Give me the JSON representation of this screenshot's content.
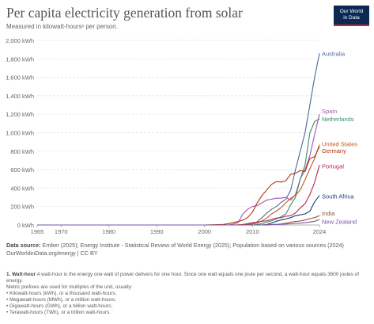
{
  "title": "Per capita electricity generation from solar",
  "subtitle": "Measured in kilowatt-hours¹ per person.",
  "logo": {
    "line1": "Our World",
    "line2": "in Data"
  },
  "source": {
    "label": "Data source:",
    "text": "Ember (2025); Energy Institute - Statistical Review of World Energy (2025); Population based on various sources (2024)",
    "url": "OurWorldinData.org/energy | CC BY"
  },
  "notes": {
    "number": "1.",
    "term": "Watt-hour",
    "definition": "A watt-hour is the energy one watt of power delivers for one hour. Since one watt equals one joule per second, a watt-hour equals 3600 joules of energy.",
    "intro": "Metric prefixes are used for multiples of the unit, usually:",
    "items": [
      "• Kilowatt-hours (kWh), or a thousand watt-hours;",
      "• Megawatt-hours (MWh), or a million watt-hours;",
      "• Gigawatt-hours (GWh), or a billion watt-hours;",
      "• Terawatt-hours (TWh), or a trillion watt-hours."
    ]
  },
  "chart_data": {
    "type": "line",
    "title": "Per capita electricity generation from solar",
    "subtitle": "Measured in kilowatt-hours¹ per person.",
    "ylim": [
      0,
      2000
    ],
    "xlim": [
      1965,
      2024
    ],
    "y_ticks": [
      0,
      200,
      400,
      600,
      800,
      1000,
      1200,
      1400,
      1600,
      1800,
      2000
    ],
    "y_tick_labels": [
      "0 kWh",
      "200 kWh",
      "400 kWh",
      "600 kWh",
      "800 kWh",
      "1,000 kWh",
      "1,200 kWh",
      "1,400 kWh",
      "1,600 kWh",
      "1,800 kWh",
      "2,000 kWh"
    ],
    "x_ticks": [
      1965,
      1970,
      1980,
      1990,
      2000,
      2010,
      2024
    ],
    "x_tick_labels": [
      "1965",
      "1970",
      "1980",
      "1990",
      "2000",
      "2010",
      "2024"
    ],
    "grid": "horizontal dashed",
    "legend": "right (labels at line ends)",
    "series": [
      {
        "name": "Australia",
        "color": "#4c6a9c",
        "label_y": 1860,
        "points": [
          [
            1965,
            0
          ],
          [
            2008,
            0
          ],
          [
            2009,
            3
          ],
          [
            2010,
            10
          ],
          [
            2011,
            35
          ],
          [
            2012,
            80
          ],
          [
            2013,
            130
          ],
          [
            2014,
            170
          ],
          [
            2015,
            200
          ],
          [
            2016,
            245
          ],
          [
            2017,
            280
          ],
          [
            2018,
            380
          ],
          [
            2019,
            600
          ],
          [
            2020,
            800
          ],
          [
            2021,
            1000
          ],
          [
            2022,
            1300
          ],
          [
            2023,
            1600
          ],
          [
            2024,
            1860
          ]
        ]
      },
      {
        "name": "Spain",
        "color": "#a652ba",
        "label_y": 1235,
        "points": [
          [
            1965,
            0
          ],
          [
            2005,
            0
          ],
          [
            2006,
            10
          ],
          [
            2007,
            25
          ],
          [
            2008,
            120
          ],
          [
            2009,
            170
          ],
          [
            2010,
            200
          ],
          [
            2011,
            210
          ],
          [
            2012,
            240
          ],
          [
            2013,
            270
          ],
          [
            2014,
            280
          ],
          [
            2015,
            290
          ],
          [
            2016,
            290
          ],
          [
            2017,
            300
          ],
          [
            2018,
            270
          ],
          [
            2019,
            330
          ],
          [
            2020,
            500
          ],
          [
            2021,
            600
          ],
          [
            2022,
            750
          ],
          [
            2023,
            980
          ],
          [
            2024,
            1200
          ]
        ]
      },
      {
        "name": "Netherlands",
        "color": "#3c8c6c",
        "label_y": 1150,
        "points": [
          [
            1965,
            0
          ],
          [
            2010,
            0
          ],
          [
            2011,
            5
          ],
          [
            2012,
            15
          ],
          [
            2013,
            30
          ],
          [
            2014,
            45
          ],
          [
            2015,
            65
          ],
          [
            2016,
            90
          ],
          [
            2017,
            120
          ],
          [
            2018,
            220
          ],
          [
            2019,
            300
          ],
          [
            2020,
            500
          ],
          [
            2021,
            650
          ],
          [
            2022,
            1000
          ],
          [
            2023,
            1120
          ],
          [
            2024,
            1150
          ]
        ]
      },
      {
        "name": "United States",
        "color": "#c05917",
        "label_y": 880,
        "points": [
          [
            1965,
            0
          ],
          [
            2006,
            0
          ],
          [
            2008,
            5
          ],
          [
            2010,
            12
          ],
          [
            2011,
            20
          ],
          [
            2012,
            45
          ],
          [
            2013,
            75
          ],
          [
            2014,
            120
          ],
          [
            2015,
            150
          ],
          [
            2016,
            190
          ],
          [
            2017,
            240
          ],
          [
            2018,
            290
          ],
          [
            2019,
            320
          ],
          [
            2020,
            380
          ],
          [
            2021,
            490
          ],
          [
            2022,
            610
          ],
          [
            2023,
            720
          ],
          [
            2024,
            870
          ]
        ]
      },
      {
        "name": "Germany",
        "color": "#b13507",
        "label_y": 805,
        "points": [
          [
            1965,
            0
          ],
          [
            2000,
            0
          ],
          [
            2002,
            3
          ],
          [
            2004,
            6
          ],
          [
            2005,
            15
          ],
          [
            2006,
            27
          ],
          [
            2007,
            37
          ],
          [
            2008,
            53
          ],
          [
            2009,
            80
          ],
          [
            2010,
            140
          ],
          [
            2011,
            240
          ],
          [
            2012,
            320
          ],
          [
            2013,
            380
          ],
          [
            2014,
            440
          ],
          [
            2015,
            470
          ],
          [
            2016,
            465
          ],
          [
            2017,
            480
          ],
          [
            2018,
            550
          ],
          [
            2019,
            560
          ],
          [
            2020,
            590
          ],
          [
            2021,
            580
          ],
          [
            2022,
            720
          ],
          [
            2023,
            740
          ],
          [
            2024,
            850
          ]
        ]
      },
      {
        "name": "Portugal",
        "color": "#b6294c",
        "label_y": 640,
        "points": [
          [
            1965,
            0
          ],
          [
            2007,
            0
          ],
          [
            2008,
            5
          ],
          [
            2009,
            15
          ],
          [
            2010,
            25
          ],
          [
            2011,
            30
          ],
          [
            2012,
            40
          ],
          [
            2013,
            45
          ],
          [
            2014,
            60
          ],
          [
            2015,
            75
          ],
          [
            2016,
            80
          ],
          [
            2017,
            95
          ],
          [
            2018,
            100
          ],
          [
            2019,
            130
          ],
          [
            2020,
            185
          ],
          [
            2021,
            230
          ],
          [
            2022,
            330
          ],
          [
            2023,
            460
          ],
          [
            2024,
            650
          ]
        ]
      },
      {
        "name": "South Africa",
        "color": "#1a3a7a",
        "label_y": 315,
        "points": [
          [
            1965,
            0
          ],
          [
            2012,
            0
          ],
          [
            2013,
            5
          ],
          [
            2014,
            20
          ],
          [
            2015,
            40
          ],
          [
            2016,
            55
          ],
          [
            2017,
            65
          ],
          [
            2018,
            80
          ],
          [
            2019,
            100
          ],
          [
            2020,
            110
          ],
          [
            2021,
            120
          ],
          [
            2022,
            150
          ],
          [
            2023,
            250
          ],
          [
            2024,
            320
          ]
        ]
      },
      {
        "name": "India",
        "color": "#9a5129",
        "label_y": 130,
        "points": [
          [
            1965,
            0
          ],
          [
            2011,
            0
          ],
          [
            2012,
            1
          ],
          [
            2013,
            3
          ],
          [
            2014,
            4
          ],
          [
            2015,
            6
          ],
          [
            2016,
            11
          ],
          [
            2017,
            19
          ],
          [
            2018,
            29
          ],
          [
            2019,
            38
          ],
          [
            2020,
            43
          ],
          [
            2021,
            54
          ],
          [
            2022,
            69
          ],
          [
            2023,
            80
          ],
          [
            2024,
            100
          ]
        ]
      },
      {
        "name": "New Zealand",
        "color": "#7a56a6",
        "label_y": 40,
        "points": [
          [
            1965,
            0
          ],
          [
            2012,
            0
          ],
          [
            2013,
            2
          ],
          [
            2014,
            4
          ],
          [
            2015,
            6
          ],
          [
            2016,
            8
          ],
          [
            2017,
            10
          ],
          [
            2018,
            13
          ],
          [
            2019,
            17
          ],
          [
            2020,
            20
          ],
          [
            2021,
            25
          ],
          [
            2022,
            32
          ],
          [
            2023,
            40
          ],
          [
            2024,
            60
          ]
        ]
      }
    ]
  }
}
